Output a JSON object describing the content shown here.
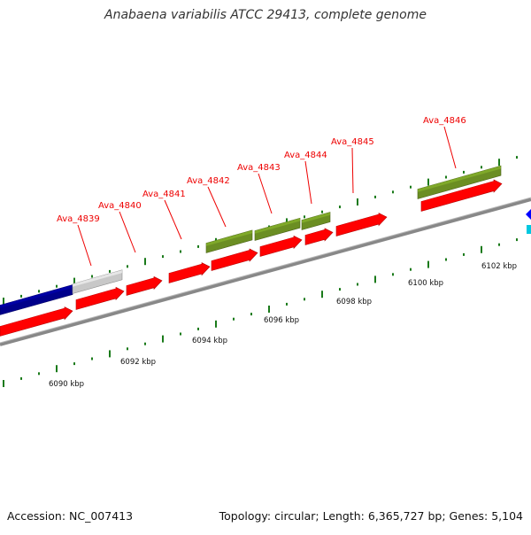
{
  "title": "Anabaena variabilis ATCC 29413, complete genome",
  "footer": {
    "accession": "Accession: NC_007413",
    "summary": "Topology: circular; Length: 6,365,727 bp; Genes: 5,104"
  },
  "colors": {
    "forward_cds": "#ff0000",
    "reverse_cds": "#6b8e23",
    "backbone": "#888888",
    "ruler_tick": "#1a7a1a",
    "label": "#ee0000",
    "feature_navy": "#00008b",
    "feature_gray": "#c8c8c8",
    "feature_blue": "#0000ff",
    "feature_cyan": "#00c8e0"
  },
  "kbp_labels": [
    "6090 kbp",
    "6092 kbp",
    "6094 kbp",
    "6096 kbp",
    "6098 kbp",
    "6100 kbp",
    "6102 kbp"
  ],
  "gene_labels": [
    "Ava_4839",
    "Ava_4840",
    "Ava_4841",
    "Ava_4842",
    "Ava_4843",
    "Ava_4844",
    "Ava_4845",
    "Ava_4846"
  ]
}
